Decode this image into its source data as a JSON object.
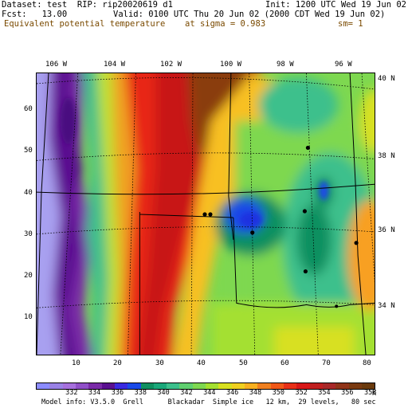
{
  "header": {
    "dataset": "Dataset: test  RIP: rip20020619 d1",
    "init": "Init: 1200 UTC Wed 19 Jun 02",
    "fcst": "Fcst:   13.00",
    "valid": "Valid: 0100 UTC Thu 20 Jun 02 (2000 CDT Wed 19 Jun 02)",
    "field": "Equivalent potential temperature",
    "sigma": "at sigma = 0.983",
    "sm": "sm= 1"
  },
  "axes": {
    "top_lon": [
      "106 W",
      "104 W",
      "102 W",
      "100 W",
      "98 W",
      "96 W"
    ],
    "right_lat": [
      "40 N",
      "38 N",
      "36 N",
      "34 N"
    ],
    "left_y": [
      "60",
      "50",
      "40",
      "30",
      "20",
      "10"
    ],
    "bottom_x": [
      "10",
      "20",
      "30",
      "40",
      "50",
      "60",
      "70",
      "80"
    ]
  },
  "colorbar": {
    "unit": "K",
    "labels": [
      "332",
      "334",
      "336",
      "338",
      "340",
      "342",
      "344",
      "346",
      "348",
      "350",
      "352",
      "354",
      "356",
      "358"
    ],
    "colors": [
      "#8c8cff",
      "#9a82e6",
      "#a670dd",
      "#9050c8",
      "#7a2aa8",
      "#5a1090",
      "#3a2ae0",
      "#1a4ae8",
      "#109060",
      "#1aa87a",
      "#3cc08c",
      "#60d070",
      "#7ed850",
      "#a4e030",
      "#d8e020",
      "#f0d020",
      "#f8b020",
      "#f08020",
      "#f05818",
      "#e83018",
      "#d81818",
      "#c02020",
      "#a82828",
      "#903418",
      "#7a3a10",
      "#6a3a0c"
    ]
  },
  "footer": "Model info: V3.5.0  Grell      Blackadar  Simple ice   12 km,  29 levels,   80 sec",
  "map_legend": {
    "palette_for_field": "theta-e",
    "cities_marked": 8
  }
}
